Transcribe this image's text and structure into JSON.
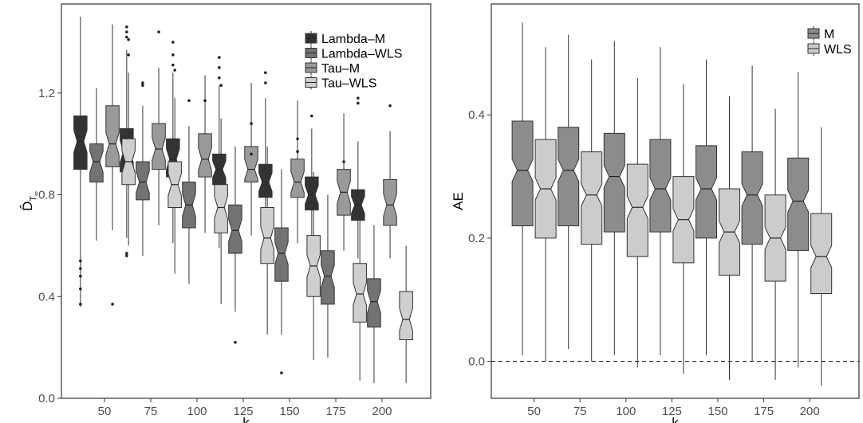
{
  "chart_data": [
    {
      "type": "boxplot",
      "notched": true,
      "xlabel": "k",
      "ylabel": "D̂",
      "ylabel_subscript": "T",
      "ylabel_subsubscript": "∞",
      "categories": [
        "50",
        "75",
        "100",
        "125",
        "150",
        "175",
        "200"
      ],
      "ylim": [
        0,
        1.55
      ],
      "yticks": [
        "0.0",
        "0.4",
        "0.8",
        "1.2"
      ],
      "legend_position": "top-right",
      "series": [
        {
          "name": "Lambda–M",
          "color": "#333333",
          "boxes": [
            {
              "lower": 0.36,
              "q1": 0.9,
              "median": 1.01,
              "q3": 1.11,
              "upper": 1.5,
              "outliers": [
                0.37,
                0.43,
                0.48,
                0.51,
                0.54
              ]
            },
            {
              "lower": 0.63,
              "q1": 0.89,
              "median": 0.97,
              "q3": 1.06,
              "upper": 1.37,
              "outliers": [
                0.56,
                0.57,
                1.42,
                1.44,
                1.46
              ]
            },
            {
              "lower": 0.61,
              "q1": 0.87,
              "median": 0.94,
              "q3": 1.02,
              "upper": 1.28,
              "outliers": [
                1.31,
                1.35,
                1.4
              ]
            },
            {
              "lower": 0.59,
              "q1": 0.84,
              "median": 0.9,
              "q3": 0.96,
              "upper": 1.23,
              "outliers": [
                1.26,
                1.3,
                1.34
              ]
            },
            {
              "lower": 0.56,
              "q1": 0.79,
              "median": 0.85,
              "q3": 0.92,
              "upper": 1.18,
              "outliers": [
                1.24,
                1.28
              ]
            },
            {
              "lower": 0.54,
              "q1": 0.74,
              "median": 0.8,
              "q3": 0.87,
              "upper": 1.06,
              "outliers": [
                1.11
              ]
            },
            {
              "lower": 0.55,
              "q1": 0.7,
              "median": 0.76,
              "q3": 0.82,
              "upper": 1.01,
              "outliers": [
                1.16,
                1.18
              ]
            }
          ]
        },
        {
          "name": "Lambda–WLS",
          "color": "#737373",
          "boxes": [
            {
              "lower": 0.62,
              "q1": 0.85,
              "median": 0.93,
              "q3": 1.0,
              "upper": 1.22,
              "outliers": []
            },
            {
              "lower": 0.56,
              "q1": 0.78,
              "median": 0.85,
              "q3": 0.93,
              "upper": 1.15,
              "outliers": [
                1.23,
                1.24
              ]
            },
            {
              "lower": 0.45,
              "q1": 0.67,
              "median": 0.76,
              "q3": 0.85,
              "upper": 1.07,
              "outliers": [
                1.17
              ]
            },
            {
              "lower": 0.34,
              "q1": 0.57,
              "median": 0.66,
              "q3": 0.76,
              "upper": 0.99,
              "outliers": [
                0.22
              ]
            },
            {
              "lower": 0.25,
              "q1": 0.46,
              "median": 0.57,
              "q3": 0.67,
              "upper": 0.9,
              "outliers": [
                0.1
              ]
            },
            {
              "lower": 0.16,
              "q1": 0.37,
              "median": 0.48,
              "q3": 0.58,
              "upper": 0.8,
              "outliers": []
            },
            {
              "lower": 0.06,
              "q1": 0.28,
              "median": 0.38,
              "q3": 0.47,
              "upper": 0.68,
              "outliers": []
            }
          ]
        },
        {
          "name": "Tau–M",
          "color": "#9a9a9a",
          "boxes": [
            {
              "lower": 0.66,
              "q1": 0.91,
              "median": 1.0,
              "q3": 1.15,
              "upper": 1.47,
              "outliers": [
                0.37
              ]
            },
            {
              "lower": 0.68,
              "q1": 0.9,
              "median": 0.98,
              "q3": 1.08,
              "upper": 1.3,
              "outliers": [
                1.44
              ]
            },
            {
              "lower": 0.65,
              "q1": 0.87,
              "median": 0.94,
              "q3": 1.04,
              "upper": 1.27,
              "outliers": [
                1.17
              ]
            },
            {
              "lower": 0.64,
              "q1": 0.85,
              "median": 0.9,
              "q3": 0.99,
              "upper": 1.24,
              "outliers": [
                0.96,
                1.08
              ]
            },
            {
              "lower": 0.61,
              "q1": 0.79,
              "median": 0.85,
              "q3": 0.94,
              "upper": 1.17,
              "outliers": [
                0.97,
                1.02
              ]
            },
            {
              "lower": 0.58,
              "q1": 0.72,
              "median": 0.81,
              "q3": 0.9,
              "upper": 1.12,
              "outliers": [
                0.93
              ]
            },
            {
              "lower": 0.55,
              "q1": 0.68,
              "median": 0.76,
              "q3": 0.86,
              "upper": 1.05,
              "outliers": [
                1.15
              ]
            }
          ]
        },
        {
          "name": "Tau–WLS",
          "color": "#cfcfcf",
          "boxes": [
            {
              "lower": 0.6,
              "q1": 0.84,
              "median": 0.93,
              "q3": 1.02,
              "upper": 1.28,
              "outliers": [
                1.35,
                1.41
              ]
            },
            {
              "lower": 0.49,
              "q1": 0.75,
              "median": 0.84,
              "q3": 0.93,
              "upper": 1.18,
              "outliers": [
                1.29
              ]
            },
            {
              "lower": 0.37,
              "q1": 0.65,
              "median": 0.75,
              "q3": 0.84,
              "upper": 1.1,
              "outliers": [
                1.23
              ]
            },
            {
              "lower": 0.25,
              "q1": 0.53,
              "median": 0.63,
              "q3": 0.75,
              "upper": 0.99,
              "outliers": []
            },
            {
              "lower": 0.15,
              "q1": 0.4,
              "median": 0.52,
              "q3": 0.64,
              "upper": 0.89,
              "outliers": []
            },
            {
              "lower": 0.07,
              "q1": 0.3,
              "median": 0.41,
              "q3": 0.53,
              "upper": 0.76,
              "outliers": []
            },
            {
              "lower": 0.06,
              "q1": 0.23,
              "median": 0.31,
              "q3": 0.42,
              "upper": 0.6,
              "outliers": []
            }
          ]
        }
      ]
    },
    {
      "type": "boxplot",
      "notched": true,
      "xlabel": "k",
      "ylabel": "AE",
      "categories": [
        "50",
        "75",
        "100",
        "125",
        "150",
        "175",
        "200"
      ],
      "ylim": [
        -0.06,
        0.58
      ],
      "yticks": [
        "0.0",
        "0.2",
        "0.4"
      ],
      "reference_line": {
        "y": 0,
        "style": "dashed"
      },
      "legend_position": "top-right",
      "series": [
        {
          "name": "M",
          "color": "#8c8c8c",
          "boxes": [
            {
              "lower": 0.01,
              "q1": 0.22,
              "median": 0.31,
              "q3": 0.39,
              "upper": 0.55
            },
            {
              "lower": 0.02,
              "q1": 0.22,
              "median": 0.31,
              "q3": 0.38,
              "upper": 0.53
            },
            {
              "lower": 0.01,
              "q1": 0.21,
              "median": 0.3,
              "q3": 0.37,
              "upper": 0.52
            },
            {
              "lower": 0.01,
              "q1": 0.21,
              "median": 0.28,
              "q3": 0.36,
              "upper": 0.51
            },
            {
              "lower": 0.01,
              "q1": 0.2,
              "median": 0.28,
              "q3": 0.35,
              "upper": 0.49
            },
            {
              "lower": 0.0,
              "q1": 0.19,
              "median": 0.27,
              "q3": 0.34,
              "upper": 0.48
            },
            {
              "lower": -0.01,
              "q1": 0.18,
              "median": 0.26,
              "q3": 0.33,
              "upper": 0.47
            }
          ]
        },
        {
          "name": "WLS",
          "color": "#cccccc",
          "boxes": [
            {
              "lower": 0.0,
              "q1": 0.2,
              "median": 0.28,
              "q3": 0.36,
              "upper": 0.51
            },
            {
              "lower": 0.0,
              "q1": 0.19,
              "median": 0.27,
              "q3": 0.34,
              "upper": 0.49
            },
            {
              "lower": -0.01,
              "q1": 0.17,
              "median": 0.25,
              "q3": 0.32,
              "upper": 0.46
            },
            {
              "lower": -0.02,
              "q1": 0.16,
              "median": 0.23,
              "q3": 0.3,
              "upper": 0.45
            },
            {
              "lower": -0.03,
              "q1": 0.14,
              "median": 0.21,
              "q3": 0.28,
              "upper": 0.43
            },
            {
              "lower": -0.03,
              "q1": 0.13,
              "median": 0.2,
              "q3": 0.27,
              "upper": 0.41
            },
            {
              "lower": -0.04,
              "q1": 0.11,
              "median": 0.17,
              "q3": 0.24,
              "upper": 0.38
            }
          ]
        }
      ]
    }
  ]
}
